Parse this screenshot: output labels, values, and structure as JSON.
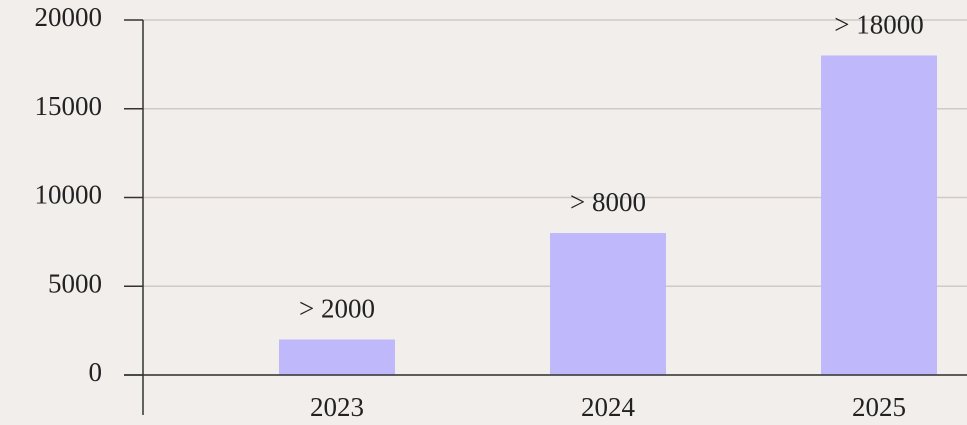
{
  "chart_data": {
    "type": "bar",
    "categories": [
      "2023",
      "2024",
      "2025"
    ],
    "values": [
      2000,
      8000,
      18000
    ],
    "value_labels": [
      "> 2000",
      "> 8000",
      "> 18000"
    ],
    "color": "#bfb8fb",
    "ylim": [
      0,
      20000
    ],
    "yticks": [
      0,
      5000,
      10000,
      15000,
      20000
    ],
    "grid": true
  }
}
